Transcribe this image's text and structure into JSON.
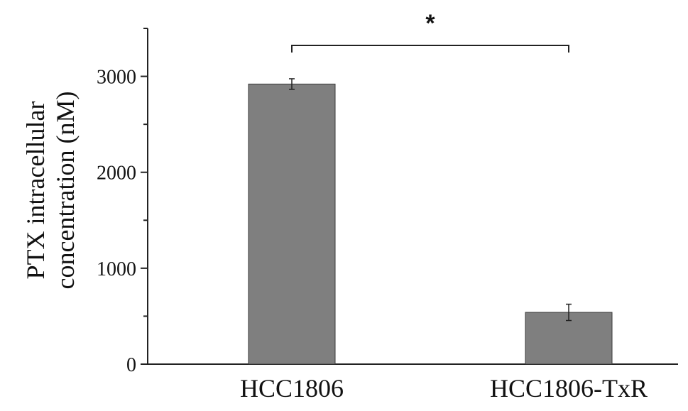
{
  "chart_data": {
    "type": "bar",
    "categories": [
      "HCC1806",
      "HCC1806-TxR"
    ],
    "series": [
      {
        "values": [
          2920,
          540
        ],
        "error": [
          55,
          85
        ]
      }
    ],
    "ylabel": [
      "PTX intracellular",
      "concentration (nM)"
    ],
    "xlabel": "",
    "yticks": [
      0,
      1000,
      2000,
      3000
    ],
    "ylim": [
      0,
      3500
    ],
    "grid": false,
    "bar_color": "#7f7f7f",
    "significance": {
      "between": [
        "HCC1806",
        "HCC1806-TxR"
      ],
      "label": "*"
    }
  }
}
